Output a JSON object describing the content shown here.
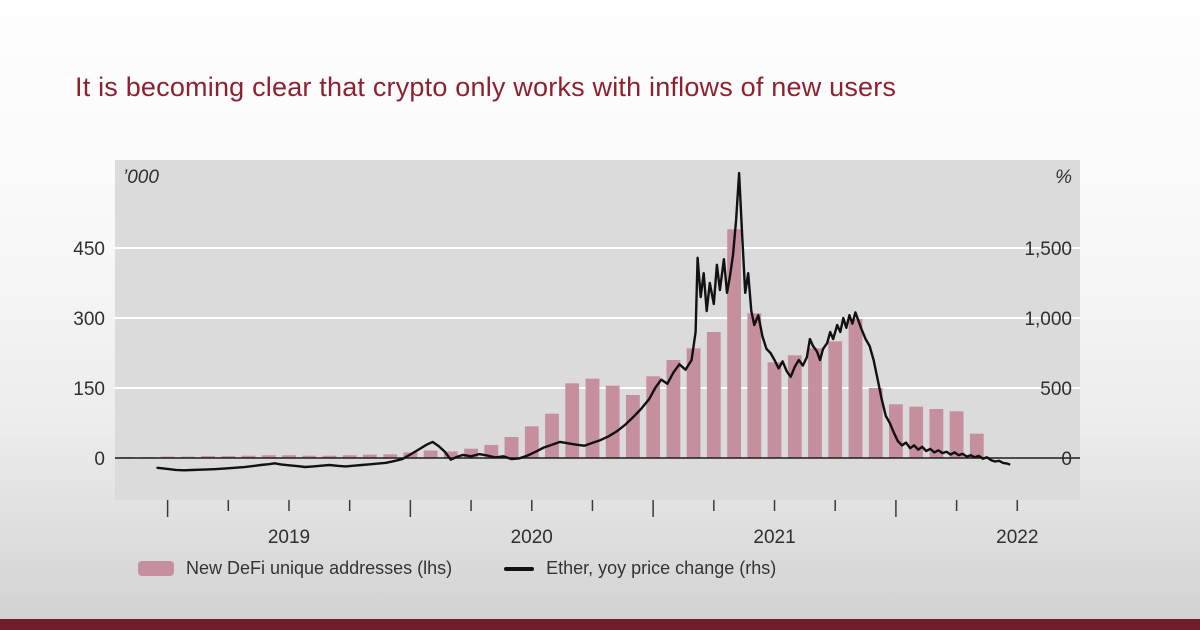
{
  "slide": {
    "title": "It is becoming clear that crypto only works with inflows of new users",
    "title_color": "#8e2130",
    "footer_bar_color": "#6e1d29"
  },
  "legend": [
    {
      "swatch": "bar",
      "color": "#c58f9d",
      "label": "New DeFi unique addresses (lhs)"
    },
    {
      "swatch": "line",
      "color": "#111111",
      "label": "Ether, yoy price change (rhs)"
    }
  ],
  "chart_data": {
    "type": "bar+line",
    "title": "",
    "plot_bg": "#dbdbdb",
    "grid": "on",
    "legend_position": "bottom",
    "left_axis": {
      "unit": "’000",
      "ticks": [
        0,
        150,
        300,
        450
      ],
      "tick_labels": [
        "0",
        "150",
        "300",
        "450"
      ],
      "display_range": [
        -90,
        638
      ]
    },
    "right_axis": {
      "unit": "%",
      "ticks": [
        0,
        500,
        1000,
        1500
      ],
      "tick_labels": [
        "0",
        "500",
        "1,000",
        "1,500"
      ],
      "display_range": [
        -300,
        2128
      ]
    },
    "x_axis": {
      "year_labels": [
        "2019",
        "2020",
        "2021",
        "2022"
      ],
      "year_label_months": [
        8,
        20,
        32,
        44
      ],
      "year_tick_months": [
        2,
        14,
        26,
        38
      ],
      "quarter_tick_months": [
        5,
        8,
        11,
        17,
        20,
        23,
        29,
        32,
        35,
        41,
        44
      ],
      "domain_months": [
        -0.6,
        47.1
      ]
    },
    "bar_series": {
      "name": "New DeFi unique addresses (lhs)",
      "axis": "left",
      "unit": "thousands",
      "color": "#c58f9d",
      "categories": [
        "2018-11",
        "2018-12",
        "2019-01",
        "2019-02",
        "2019-03",
        "2019-04",
        "2019-05",
        "2019-06",
        "2019-07",
        "2019-08",
        "2019-09",
        "2019-10",
        "2019-11",
        "2019-12",
        "2020-01",
        "2020-02",
        "2020-03",
        "2020-04",
        "2020-05",
        "2020-06",
        "2020-07",
        "2020-08",
        "2020-09",
        "2020-10",
        "2020-11",
        "2020-12",
        "2021-01",
        "2021-02",
        "2021-03",
        "2021-04",
        "2021-05",
        "2021-06",
        "2021-07",
        "2021-08",
        "2021-09",
        "2021-10",
        "2021-11",
        "2021-12",
        "2022-01",
        "2022-02",
        "2022-03",
        "2022-04",
        "2022-05"
      ],
      "values": [
        2,
        2,
        3,
        3,
        4,
        4,
        5,
        6,
        6,
        5,
        5,
        6,
        7,
        8,
        12,
        16,
        14,
        20,
        28,
        45,
        68,
        95,
        160,
        170,
        155,
        135,
        175,
        210,
        235,
        270,
        490,
        310,
        205,
        220,
        235,
        250,
        298,
        150,
        115,
        110,
        105,
        100,
        52
      ]
    },
    "line_series": {
      "name": "Ether, yoy price change (rhs)",
      "axis": "right",
      "unit": "% yoy",
      "color": "#111111",
      "points": [
        [
          1.5,
          -70
        ],
        [
          2.0,
          -78
        ],
        [
          2.4,
          -85
        ],
        [
          2.8,
          -88
        ],
        [
          3.2,
          -86
        ],
        [
          3.8,
          -83
        ],
        [
          4.3,
          -80
        ],
        [
          4.8,
          -76
        ],
        [
          5.3,
          -70
        ],
        [
          5.8,
          -65
        ],
        [
          6.2,
          -58
        ],
        [
          6.6,
          -50
        ],
        [
          7.0,
          -44
        ],
        [
          7.3,
          -38
        ],
        [
          7.6,
          -46
        ],
        [
          8.0,
          -52
        ],
        [
          8.4,
          -58
        ],
        [
          8.8,
          -64
        ],
        [
          9.2,
          -60
        ],
        [
          9.6,
          -55
        ],
        [
          10.0,
          -50
        ],
        [
          10.4,
          -56
        ],
        [
          10.8,
          -60
        ],
        [
          11.2,
          -55
        ],
        [
          11.6,
          -50
        ],
        [
          12.0,
          -45
        ],
        [
          12.4,
          -40
        ],
        [
          12.8,
          -34
        ],
        [
          13.2,
          -22
        ],
        [
          13.6,
          -8
        ],
        [
          14.0,
          25
        ],
        [
          14.4,
          60
        ],
        [
          14.8,
          95
        ],
        [
          15.1,
          115
        ],
        [
          15.4,
          85
        ],
        [
          15.7,
          45
        ],
        [
          16.0,
          -12
        ],
        [
          16.3,
          8
        ],
        [
          16.6,
          22
        ],
        [
          17.0,
          12
        ],
        [
          17.4,
          28
        ],
        [
          17.8,
          18
        ],
        [
          18.2,
          4
        ],
        [
          18.6,
          12
        ],
        [
          19.0,
          -8
        ],
        [
          19.4,
          -2
        ],
        [
          19.8,
          18
        ],
        [
          20.2,
          45
        ],
        [
          20.6,
          75
        ],
        [
          21.0,
          95
        ],
        [
          21.4,
          115
        ],
        [
          21.8,
          105
        ],
        [
          22.2,
          95
        ],
        [
          22.6,
          88
        ],
        [
          23.0,
          108
        ],
        [
          23.4,
          128
        ],
        [
          23.8,
          155
        ],
        [
          24.2,
          190
        ],
        [
          24.6,
          235
        ],
        [
          25.0,
          290
        ],
        [
          25.4,
          350
        ],
        [
          25.8,
          420
        ],
        [
          26.1,
          500
        ],
        [
          26.4,
          560
        ],
        [
          26.7,
          530
        ],
        [
          27.0,
          610
        ],
        [
          27.3,
          670
        ],
        [
          27.6,
          630
        ],
        [
          27.9,
          700
        ],
        [
          28.1,
          900
        ],
        [
          28.2,
          1430
        ],
        [
          28.35,
          1150
        ],
        [
          28.5,
          1320
        ],
        [
          28.65,
          1050
        ],
        [
          28.8,
          1250
        ],
        [
          29.0,
          1100
        ],
        [
          29.15,
          1380
        ],
        [
          29.3,
          1200
        ],
        [
          29.5,
          1420
        ],
        [
          29.65,
          1180
        ],
        [
          29.8,
          1300
        ],
        [
          29.95,
          1450
        ],
        [
          30.1,
          1700
        ],
        [
          30.25,
          2035
        ],
        [
          30.4,
          1600
        ],
        [
          30.55,
          1180
        ],
        [
          30.7,
          1320
        ],
        [
          30.85,
          1050
        ],
        [
          31.0,
          950
        ],
        [
          31.2,
          1020
        ],
        [
          31.4,
          870
        ],
        [
          31.6,
          780
        ],
        [
          31.8,
          750
        ],
        [
          32.0,
          700
        ],
        [
          32.2,
          640
        ],
        [
          32.4,
          690
        ],
        [
          32.6,
          620
        ],
        [
          32.8,
          580
        ],
        [
          33.0,
          650
        ],
        [
          33.2,
          700
        ],
        [
          33.4,
          660
        ],
        [
          33.6,
          720
        ],
        [
          33.75,
          850
        ],
        [
          33.9,
          800
        ],
        [
          34.1,
          760
        ],
        [
          34.25,
          700
        ],
        [
          34.4,
          780
        ],
        [
          34.6,
          820
        ],
        [
          34.75,
          900
        ],
        [
          34.9,
          850
        ],
        [
          35.1,
          950
        ],
        [
          35.25,
          900
        ],
        [
          35.4,
          1000
        ],
        [
          35.55,
          930
        ],
        [
          35.7,
          1020
        ],
        [
          35.85,
          960
        ],
        [
          36.0,
          1040
        ],
        [
          36.15,
          980
        ],
        [
          36.3,
          920
        ],
        [
          36.5,
          850
        ],
        [
          36.7,
          800
        ],
        [
          36.9,
          700
        ],
        [
          37.1,
          560
        ],
        [
          37.3,
          420
        ],
        [
          37.5,
          300
        ],
        [
          37.7,
          250
        ],
        [
          37.9,
          180
        ],
        [
          38.1,
          120
        ],
        [
          38.3,
          90
        ],
        [
          38.5,
          110
        ],
        [
          38.7,
          70
        ],
        [
          38.9,
          90
        ],
        [
          39.1,
          60
        ],
        [
          39.3,
          80
        ],
        [
          39.5,
          50
        ],
        [
          39.7,
          65
        ],
        [
          39.9,
          40
        ],
        [
          40.1,
          55
        ],
        [
          40.3,
          35
        ],
        [
          40.5,
          45
        ],
        [
          40.7,
          25
        ],
        [
          40.9,
          40
        ],
        [
          41.1,
          20
        ],
        [
          41.3,
          30
        ],
        [
          41.5,
          10
        ],
        [
          41.7,
          20
        ],
        [
          41.9,
          5
        ],
        [
          42.1,
          15
        ],
        [
          42.3,
          -5
        ],
        [
          42.5,
          5
        ],
        [
          42.7,
          -15
        ],
        [
          42.9,
          -25
        ],
        [
          43.1,
          -20
        ],
        [
          43.3,
          -35
        ],
        [
          43.5,
          -40
        ],
        [
          43.6,
          -45
        ]
      ]
    }
  }
}
